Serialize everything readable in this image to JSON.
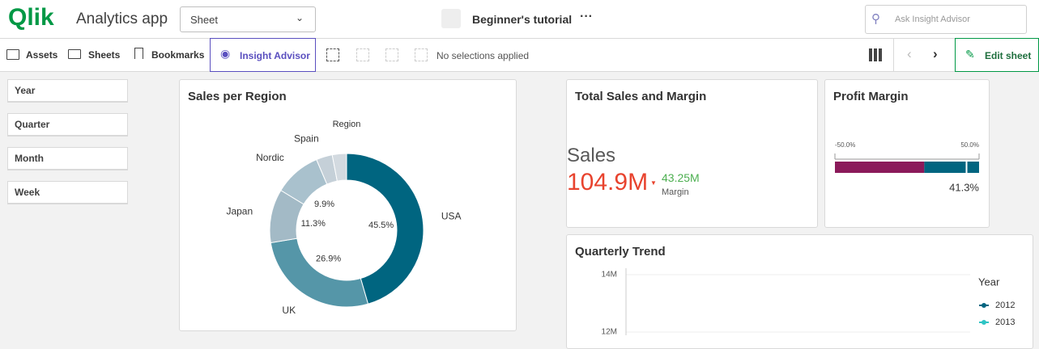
{
  "header": {
    "logo": "Qlik",
    "app_name": "Analytics app",
    "sheet_dropdown": "Sheet",
    "tutorial": "Beginner's tutorial",
    "search_placeholder": "Ask Insight Advisor"
  },
  "toolbar": {
    "assets": "Assets",
    "sheets": "Sheets",
    "bookmarks": "Bookmarks",
    "insight_advisor": "Insight Advisor",
    "selections": "No selections applied",
    "edit_sheet": "Edit sheet"
  },
  "filters": [
    "Year",
    "Quarter",
    "Month",
    "Week"
  ],
  "charts": {
    "sales_per_region": {
      "type": "pie",
      "donut": true,
      "title": "Sales per Region",
      "legend_title": "Region",
      "categories": [
        "USA",
        "UK",
        "Japan",
        "Nordic",
        "Spain",
        null
      ],
      "values": [
        45.5,
        26.9,
        11.3,
        9.9,
        3.4,
        3.0
      ],
      "value_labels": [
        "45.5%",
        "26.9%",
        "11.3%",
        "9.9%",
        null,
        null
      ],
      "colors": [
        "#006580",
        "#5596a8",
        "#a3bac6",
        "#a9c1cd",
        "#c5d0d8",
        "#d3dae0"
      ]
    },
    "total_sales": {
      "type": "kpi",
      "title": "Total Sales and Margin",
      "measure": "Sales",
      "value": "104.9M",
      "secondary_value": "43.25M",
      "secondary_label": "Margin"
    },
    "profit_margin": {
      "type": "gauge",
      "title": "Profit Margin",
      "xlim": [
        -50,
        50
      ],
      "xticks": [
        {
          "value": -50,
          "label": "-50.0%"
        },
        {
          "value": 50,
          "label": "50.0%"
        }
      ],
      "value": 41.3,
      "value_label": "41.3%",
      "bands": [
        {
          "to": 12,
          "color": "#8b1a5a"
        },
        {
          "to": 50,
          "color": "#006580"
        }
      ]
    },
    "quarterly_trend": {
      "type": "line",
      "title": "Quarterly Trend",
      "ylim": [
        12000000,
        14000000
      ],
      "yticks": [
        {
          "value": 14000000,
          "label": "14M"
        },
        {
          "value": 12000000,
          "label": "12M"
        }
      ],
      "grid": true,
      "legend_title": "Year",
      "series": [
        {
          "name": "2012",
          "color": "#006580"
        },
        {
          "name": "2013",
          "color": "#2ec4c4"
        }
      ]
    }
  }
}
